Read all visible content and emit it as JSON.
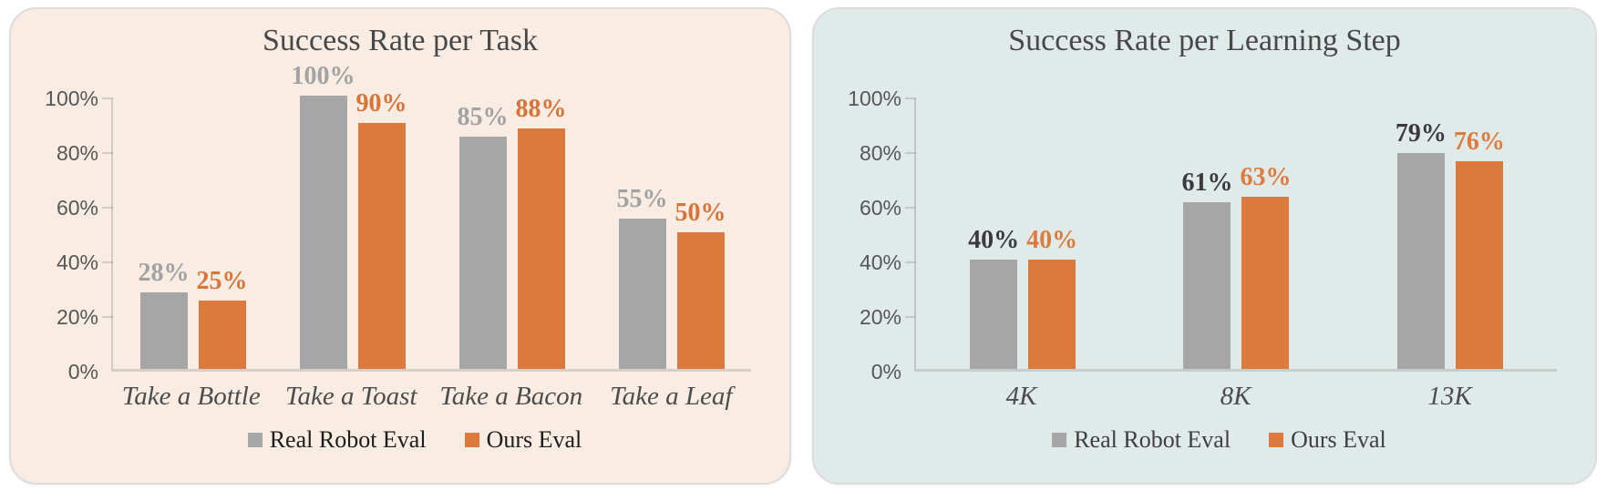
{
  "chart_data": [
    {
      "type": "bar",
      "title": "Success Rate per Task",
      "categories": [
        "Take a Bottle",
        "Take a Toast",
        "Take a Bacon",
        "Take a Leaf"
      ],
      "series": [
        {
          "name": "Real Robot Eval",
          "color": "#a6a6a6",
          "label_color": "#a2a2a2",
          "values": [
            28,
            100,
            85,
            55
          ]
        },
        {
          "name": "Ours Eval",
          "color": "#dc7a3e",
          "label_color": "#d97439",
          "values": [
            25,
            90,
            88,
            50
          ]
        }
      ],
      "value_suffix": "%",
      "xlabel": "",
      "ylabel": "",
      "ylim": [
        0,
        100
      ],
      "y_ticks": [
        0,
        20,
        40,
        60,
        80,
        100
      ],
      "y_tick_labels": [
        "0%",
        "20%",
        "40%",
        "60%",
        "80%",
        "100%"
      ],
      "grid": false,
      "legend_position": "bottom",
      "panel_background": "#f9ece2",
      "title_color": "#484848",
      "legend_text_color": "#1c1c1c"
    },
    {
      "type": "bar",
      "title": "Success Rate per Learning Step",
      "categories": [
        "4K",
        "8K",
        "13K"
      ],
      "series": [
        {
          "name": "Real Robot Eval",
          "color": "#a6a6a6",
          "label_color": "#3b3b3b",
          "values": [
            40,
            61,
            79
          ]
        },
        {
          "name": "Ours Eval",
          "color": "#dc7a3e",
          "label_color": "#dd7b3f",
          "values": [
            40,
            63,
            76
          ]
        }
      ],
      "value_suffix": "%",
      "xlabel": "",
      "ylabel": "",
      "ylim": [
        0,
        100
      ],
      "y_ticks": [
        0,
        20,
        40,
        60,
        80,
        100
      ],
      "y_tick_labels": [
        "0%",
        "20%",
        "40%",
        "60%",
        "80%",
        "100%"
      ],
      "grid": false,
      "legend_position": "bottom",
      "panel_background": "#e0eae8",
      "title_color": "#484848",
      "legend_text_color": "#3f3f3f"
    }
  ]
}
